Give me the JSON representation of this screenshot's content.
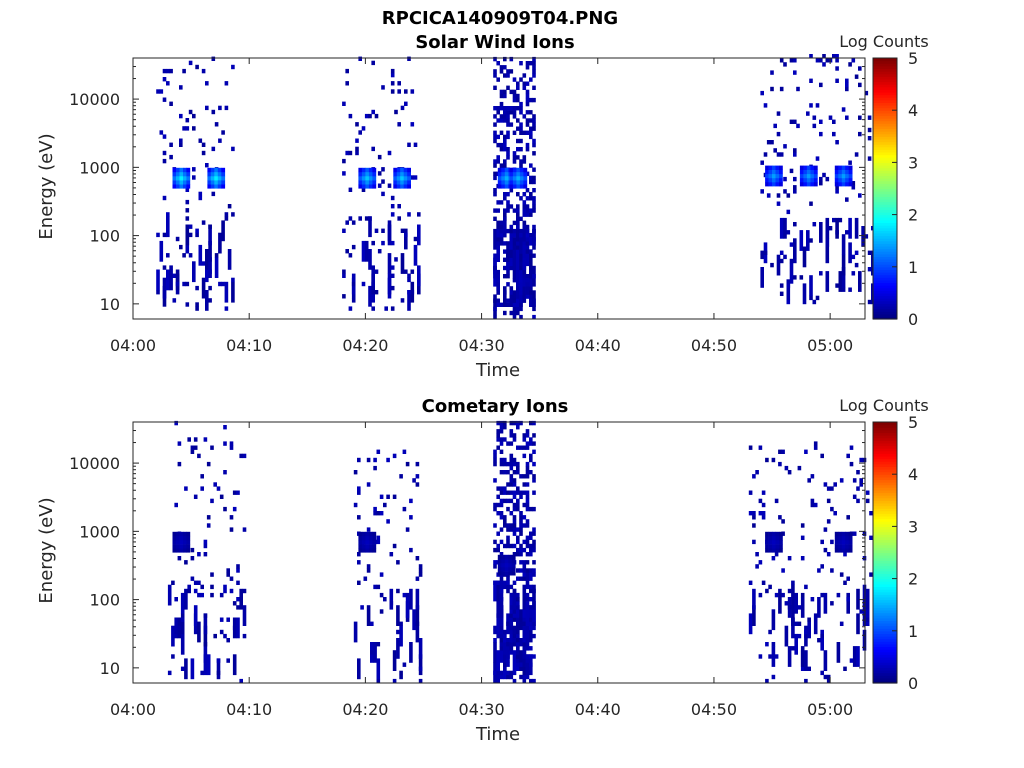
{
  "figure": {
    "title": "RPCICA140909T04.PNG"
  },
  "chart_data": [
    {
      "type": "heatmap",
      "title": "Solar Wind Ions",
      "xlabel": "Time",
      "ylabel": "Energy (eV)",
      "x_range": [
        "04:00",
        "05:03"
      ],
      "x_ticks": [
        "04:00",
        "04:10",
        "04:20",
        "04:30",
        "04:40",
        "04:50",
        "05:00"
      ],
      "y_scale": "log",
      "y_range": [
        6,
        40000
      ],
      "y_ticks": [
        10,
        100,
        1000,
        10000
      ],
      "y_tick_labels": [
        "10",
        "100",
        "1000",
        "10000"
      ],
      "grid": false,
      "colorbar": {
        "label": "Log Counts",
        "range": [
          0,
          5
        ],
        "ticks": [
          0,
          1,
          2,
          3,
          4,
          5
        ],
        "colormap": "jet"
      },
      "clusters": [
        {
          "start": "04:02",
          "end": "04:08",
          "e_min": 8,
          "e_max": 40000,
          "peak_energy": 650,
          "peak_value": 1.8,
          "peak_times": [
            "04:04",
            "04:07"
          ]
        },
        {
          "start": "04:18",
          "end": "04:24",
          "e_min": 8,
          "e_max": 40000,
          "peak_energy": 650,
          "peak_value": 1.6,
          "peak_times": [
            "04:20",
            "04:23"
          ]
        },
        {
          "start": "04:31",
          "end": "04:34",
          "e_min": 6,
          "e_max": 40000,
          "peak_energy": 650,
          "peak_value": 1.5,
          "peak_times": [
            "04:32",
            "04:33"
          ]
        },
        {
          "start": "04:54",
          "end": "05:03",
          "e_min": 10,
          "e_max": 40000,
          "peak_energy": 700,
          "peak_value": 1.4,
          "peak_times": [
            "04:55",
            "04:58",
            "05:01"
          ]
        }
      ]
    },
    {
      "type": "heatmap",
      "title": "Cometary Ions",
      "xlabel": "Time",
      "ylabel": "Energy (eV)",
      "x_range": [
        "04:00",
        "05:03"
      ],
      "x_ticks": [
        "04:00",
        "04:10",
        "04:20",
        "04:30",
        "04:40",
        "04:50",
        "05:00"
      ],
      "y_scale": "log",
      "y_range": [
        6,
        40000
      ],
      "y_ticks": [
        10,
        100,
        1000,
        10000
      ],
      "y_tick_labels": [
        "10",
        "100",
        "1000",
        "10000"
      ],
      "grid": false,
      "colorbar": {
        "label": "Log Counts",
        "range": [
          0,
          5
        ],
        "ticks": [
          0,
          1,
          2,
          3,
          4,
          5
        ],
        "colormap": "jet"
      },
      "clusters": [
        {
          "start": "04:03",
          "end": "04:09",
          "e_min": 6,
          "e_max": 40000,
          "peak_energy": 650,
          "peak_value": 0.3,
          "peak_times": [
            "04:04"
          ]
        },
        {
          "start": "04:19",
          "end": "04:24",
          "e_min": 6,
          "e_max": 15000,
          "peak_energy": 650,
          "peak_value": 0.3,
          "peak_times": [
            "04:20"
          ]
        },
        {
          "start": "04:31",
          "end": "04:34",
          "e_min": 6,
          "e_max": 40000,
          "peak_energy": 300,
          "peak_value": 0.3,
          "peak_times": [
            "04:32"
          ]
        },
        {
          "start": "04:53",
          "end": "05:03",
          "e_min": 6,
          "e_max": 20000,
          "peak_energy": 650,
          "peak_value": 0.3,
          "peak_times": [
            "04:55",
            "05:01"
          ]
        }
      ]
    }
  ]
}
